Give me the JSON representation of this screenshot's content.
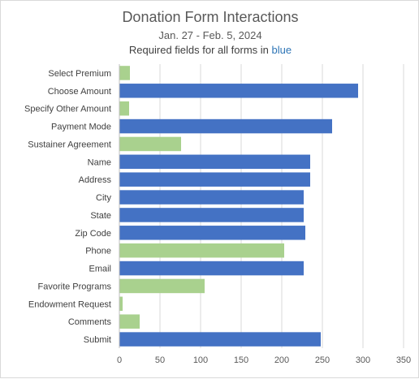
{
  "chart_data": {
    "type": "bar",
    "orientation": "horizontal",
    "title": "Donation Form Interactions",
    "subtitle": "Jan. 27 - Feb. 5, 2024",
    "note": {
      "prefix": "Required fields for all forms in ",
      "highlight": "blue"
    },
    "categories": [
      "Select Premium",
      "Choose Amount",
      "Specify Other Amount",
      "Payment Mode",
      "Sustainer Agreement",
      "Name",
      "Address",
      "City",
      "State",
      "Zip Code",
      "Phone",
      "Email",
      "Favorite Programs",
      "Endowment Request",
      "Comments",
      "Submit"
    ],
    "values": [
      13,
      294,
      12,
      262,
      76,
      235,
      235,
      227,
      227,
      229,
      203,
      227,
      105,
      4,
      25,
      248
    ],
    "required": [
      false,
      true,
      false,
      true,
      false,
      true,
      true,
      true,
      true,
      true,
      false,
      true,
      false,
      false,
      false,
      true
    ],
    "xlim": [
      0,
      350
    ],
    "xticks": [
      0,
      50,
      100,
      150,
      200,
      250,
      300,
      350
    ],
    "grid": true,
    "legend": "none",
    "colors": {
      "required": "#4472c4",
      "optional": "#a9d18e",
      "gridline": "#d9d9d9",
      "axis": "#bfbfbf"
    }
  }
}
